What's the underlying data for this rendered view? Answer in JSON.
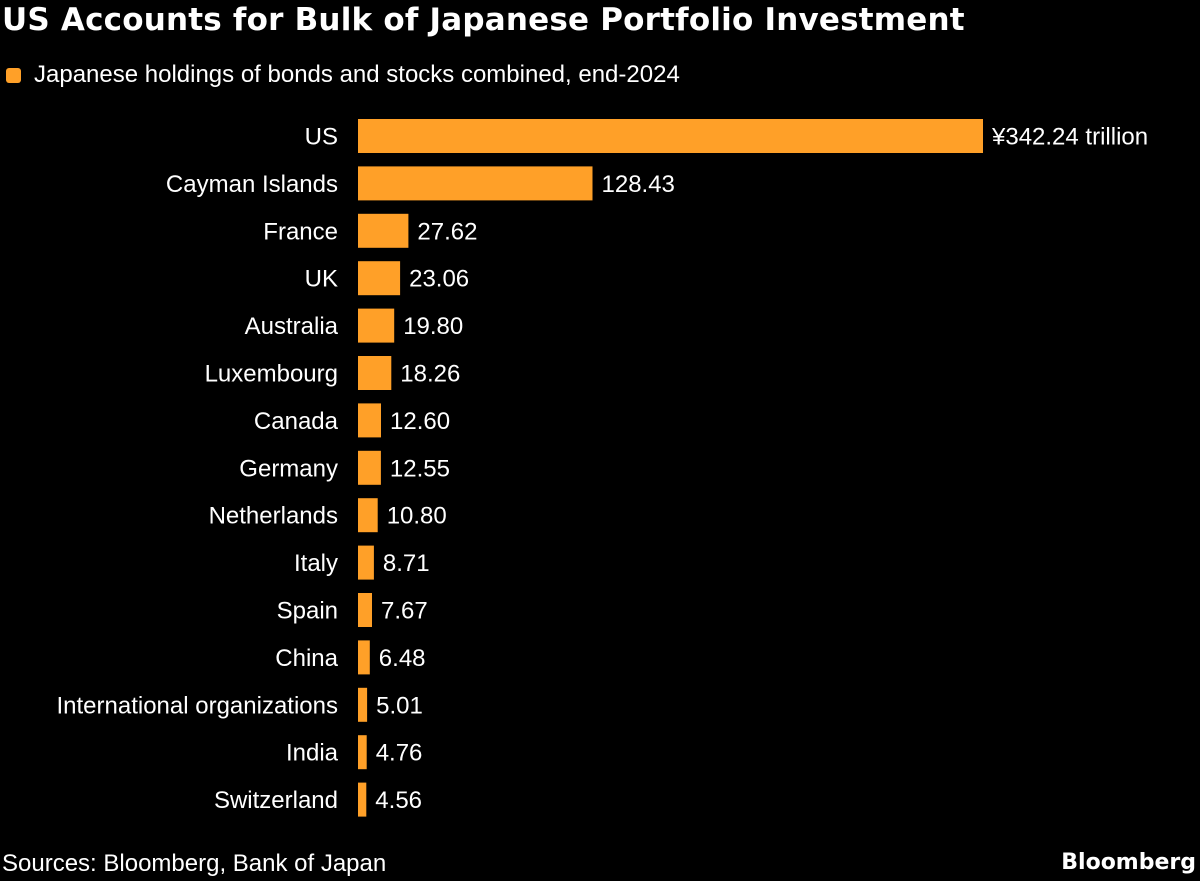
{
  "colors": {
    "background": "#000000",
    "bar": "#FFA028",
    "text": "#FFFFFF"
  },
  "chart_data": {
    "type": "bar",
    "orientation": "horizontal",
    "title": "US Accounts for Bulk of Japanese Portfolio Investment",
    "legend": {
      "position": "top-left",
      "entries": [
        "Japanese holdings of bonds and stocks combined, end-2024"
      ]
    },
    "categories": [
      "US",
      "Cayman Islands",
      "France",
      "UK",
      "Australia",
      "Luxembourg",
      "Canada",
      "Germany",
      "Netherlands",
      "Italy",
      "Spain",
      "China",
      "International organizations",
      "India",
      "Switzerland"
    ],
    "values": [
      342.24,
      128.43,
      27.62,
      23.06,
      19.8,
      18.26,
      12.6,
      12.55,
      10.8,
      8.71,
      7.67,
      6.48,
      5.01,
      4.76,
      4.56
    ],
    "value_labels": [
      "¥342.24 trillion",
      "128.43",
      "27.62",
      "23.06",
      "19.80",
      "18.26",
      "12.60",
      "12.55",
      "10.80",
      "8.71",
      "7.67",
      "6.48",
      "5.01",
      "4.76",
      "4.56"
    ],
    "unit": "¥ trillion",
    "xlim": [
      0,
      342.24
    ],
    "grid": false
  },
  "footer": {
    "source": "Sources: Bloomberg, Bank of Japan",
    "brand": "Bloomberg"
  }
}
